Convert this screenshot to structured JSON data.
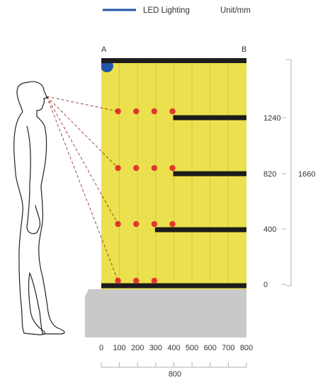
{
  "legend": {
    "line_label": "LED Lighting",
    "unit_label": "Unit/mm",
    "line_color": "#1f55a8"
  },
  "corner_labels": {
    "a": "A",
    "b": "B"
  },
  "colors": {
    "panel": "#ece04e",
    "panel_stripe": "#d2c43a",
    "shelf": "#1c1c1c",
    "dot": "#e0392b",
    "light": "#1f55a8",
    "base": "#c9c9c9",
    "dash": "#8a1d1d",
    "dim_line": "#b0b0b0"
  },
  "shelves": [
    {
      "height_label": "1240",
      "dot_x": [
        100,
        200,
        300,
        400
      ],
      "start_x": 400
    },
    {
      "height_label": "820",
      "dot_x": [
        100,
        200,
        300,
        400
      ],
      "start_x": 400
    },
    {
      "height_label": "400",
      "dot_x": [
        100,
        200,
        300,
        400
      ],
      "start_x": 300
    },
    {
      "height_label": "0",
      "dot_x": [
        100,
        200,
        300
      ],
      "start_x": 0
    }
  ],
  "total_height_label": "1660",
  "x_ticks": [
    "0",
    "100",
    "200",
    "300",
    "400",
    "500",
    "600",
    "700",
    "800"
  ],
  "total_width_label": "800",
  "icons": {
    "person": "person-silhouette-icon",
    "light": "led-light-icon"
  }
}
